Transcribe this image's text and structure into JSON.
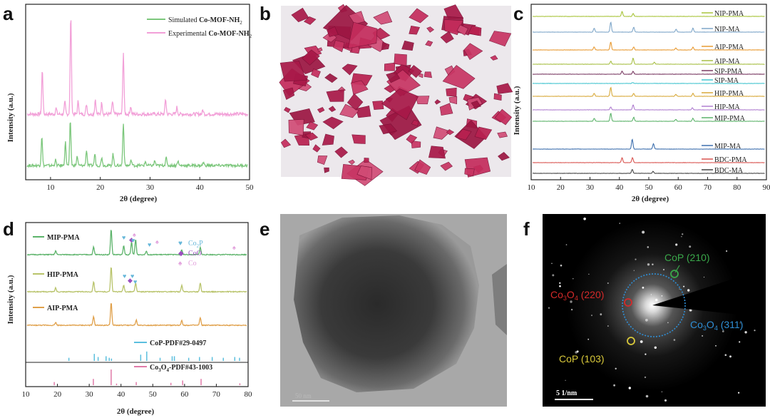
{
  "panels": {
    "a": {
      "label": "a"
    },
    "b": {
      "label": "b"
    },
    "c": {
      "label": "c"
    },
    "d": {
      "label": "d"
    },
    "e": {
      "label": "e"
    },
    "f": {
      "label": "f"
    }
  },
  "chart_data": [
    {
      "id": "a",
      "type": "line",
      "xlabel": "2θ (degree)",
      "ylabel": "Intensity (a.u.)",
      "xlim": [
        5,
        50
      ],
      "xticks": [
        "10",
        "20",
        "30",
        "40",
        "50"
      ],
      "legend": [
        {
          "prefix": "Simulated ",
          "bold": "Co-MOF-NH",
          "sub": "2",
          "color": "#7cc77c"
        },
        {
          "prefix": "Experimental ",
          "bold": "Co-MOF-NH",
          "sub": "2",
          "color": "#f2a0d8"
        }
      ],
      "series": [
        {
          "name": "Experimental",
          "color": "#f2a0d8",
          "offset": 0.5,
          "peaks": [
            [
              8.1,
              0.45
            ],
            [
              10.9,
              0.06
            ],
            [
              12.7,
              0.12
            ],
            [
              13.9,
              1.0
            ],
            [
              15.4,
              0.13
            ],
            [
              17.1,
              0.1
            ],
            [
              18.9,
              0.15
            ],
            [
              20.2,
              0.12
            ],
            [
              22.4,
              0.13
            ],
            [
              24.6,
              0.62
            ],
            [
              26.1,
              0.08
            ],
            [
              33.2,
              0.15
            ],
            [
              35.5,
              0.07
            ],
            [
              40.8,
              0.04
            ]
          ]
        },
        {
          "name": "Simulated",
          "color": "#7cc77c",
          "offset": 0.0,
          "peaks": [
            [
              8.0,
              0.38
            ],
            [
              10.8,
              0.07
            ],
            [
              12.8,
              0.3
            ],
            [
              13.8,
              0.58
            ],
            [
              15.2,
              0.12
            ],
            [
              17.1,
              0.2
            ],
            [
              18.8,
              0.15
            ],
            [
              20.2,
              0.11
            ],
            [
              22.5,
              0.15
            ],
            [
              24.6,
              0.55
            ],
            [
              26.2,
              0.07
            ],
            [
              29.1,
              0.05
            ],
            [
              31.0,
              0.06
            ],
            [
              33.3,
              0.11
            ],
            [
              35.7,
              0.06
            ],
            [
              40.9,
              0.04
            ]
          ]
        }
      ]
    },
    {
      "id": "c",
      "type": "line",
      "xlabel": "2θ (degree)",
      "ylabel": "Intensity (a.u.)",
      "xlim": [
        10,
        90
      ],
      "xticks": [
        "10",
        "20",
        "30",
        "40",
        "50",
        "60",
        "70",
        "80",
        "90"
      ],
      "series": [
        {
          "name": "NIP-PMA",
          "color": "#a8c43a",
          "peaks": [
            [
              40.8,
              0.5
            ],
            [
              44.6,
              0.3
            ]
          ]
        },
        {
          "name": "NIP-MA",
          "color": "#7ea6c9",
          "peaks": [
            [
              31.2,
              0.4
            ],
            [
              36.9,
              1.0
            ],
            [
              44.8,
              0.5
            ],
            [
              59.4,
              0.3
            ],
            [
              65.2,
              0.4
            ]
          ]
        },
        {
          "name": "AIP-PMA",
          "color": "#e89a32",
          "peaks": [
            [
              31.2,
              0.3
            ],
            [
              36.9,
              0.8
            ],
            [
              44.8,
              0.3
            ],
            [
              59.3,
              0.2
            ],
            [
              65.2,
              0.3
            ]
          ]
        },
        {
          "name": "AIP-MA",
          "color": "#a7bf45",
          "peaks": [
            [
              36.9,
              0.3
            ],
            [
              44.6,
              0.6
            ],
            [
              51.9,
              0.2
            ]
          ]
        },
        {
          "name": "SIP-PMA",
          "color": "#7a3a63",
          "peaks": [
            [
              40.8,
              0.3
            ],
            [
              44.6,
              0.3
            ]
          ]
        },
        {
          "name": "SIP-MA",
          "color": "#42c4cf",
          "peaks": [
            [
              44.5,
              0.1
            ]
          ]
        },
        {
          "name": "HIP-PMA",
          "color": "#d8a93a",
          "peaks": [
            [
              31.2,
              0.3
            ],
            [
              36.9,
              0.9
            ],
            [
              44.8,
              0.3
            ],
            [
              59.3,
              0.2
            ],
            [
              65.2,
              0.3
            ]
          ]
        },
        {
          "name": "HIP-MA",
          "color": "#b07fd0",
          "peaks": [
            [
              36.9,
              0.3
            ],
            [
              44.6,
              0.5
            ],
            [
              65.0,
              0.2
            ]
          ]
        },
        {
          "name": "MIP-PMA",
          "color": "#5cb36a",
          "peaks": [
            [
              31.2,
              0.3
            ],
            [
              36.9,
              0.8
            ],
            [
              44.8,
              0.4
            ],
            [
              59.3,
              0.2
            ],
            [
              65.2,
              0.3
            ]
          ]
        },
        {
          "name": "MIP-MA",
          "color": "#3d6fae",
          "peaks": [
            [
              44.3,
              1.0
            ],
            [
              51.6,
              0.55
            ]
          ]
        },
        {
          "name": "BDC-PMA",
          "color": "#d9534f",
          "peaks": [
            [
              40.8,
              0.5
            ],
            [
              44.4,
              0.5
            ]
          ]
        },
        {
          "name": "BDC-MA",
          "color": "#444444",
          "peaks": [
            [
              44.3,
              0.4
            ],
            [
              51.5,
              0.2
            ]
          ]
        }
      ]
    },
    {
      "id": "d",
      "type": "line",
      "xlabel": "2θ (degree)",
      "ylabel": "Intensity (a.u.)",
      "xlim": [
        10,
        80
      ],
      "xticks": [
        "10",
        "20",
        "30",
        "40",
        "50",
        "60",
        "70",
        "80"
      ],
      "markers_legend": [
        {
          "symbol": "heart",
          "label": "Co",
          "sub": "2",
          "suffix": "P",
          "color": "#66b7d9"
        },
        {
          "symbol": "diamond",
          "label": "CoO",
          "sub": "",
          "suffix": "",
          "color": "#9b4fbf"
        },
        {
          "symbol": "spade",
          "label": "Co",
          "sub": "",
          "suffix": "",
          "color": "#e2a0dc"
        }
      ],
      "series": [
        {
          "name": "MIP-PMA",
          "color": "#5cb36a",
          "peaks": [
            [
              19.1,
              0.15
            ],
            [
              31.2,
              0.3
            ],
            [
              36.8,
              1.0
            ],
            [
              40.8,
              0.35
            ],
            [
              43.3,
              0.5
            ],
            [
              44.6,
              0.6
            ],
            [
              48.0,
              0.15
            ],
            [
              59.3,
              0.2
            ],
            [
              65.2,
              0.3
            ]
          ]
        },
        {
          "name": "HIP-PMA",
          "color": "#b8c36a",
          "peaks": [
            [
              19.1,
              0.15
            ],
            [
              31.2,
              0.4
            ],
            [
              36.8,
              1.0
            ],
            [
              40.8,
              0.25
            ],
            [
              44.6,
              0.35
            ],
            [
              59.3,
              0.25
            ],
            [
              65.2,
              0.35
            ]
          ]
        },
        {
          "name": "AIP-PMA",
          "color": "#e0a04a",
          "peaks": [
            [
              19.1,
              0.12
            ],
            [
              31.2,
              0.35
            ],
            [
              36.8,
              0.9
            ],
            [
              44.8,
              0.2
            ],
            [
              59.3,
              0.2
            ],
            [
              65.2,
              0.3
            ]
          ]
        }
      ],
      "references": [
        {
          "name": "CoP-PDF#29-0497",
          "color": "#5bbfde",
          "lines": [
            [
              23.6,
              0.2
            ],
            [
              31.6,
              0.45
            ],
            [
              32.8,
              0.25
            ],
            [
              35.3,
              0.3
            ],
            [
              36.3,
              0.2
            ],
            [
              37.0,
              0.15
            ],
            [
              46.2,
              0.4
            ],
            [
              48.1,
              0.6
            ],
            [
              52.3,
              0.2
            ],
            [
              56.1,
              0.3
            ],
            [
              56.8,
              0.3
            ],
            [
              61.3,
              0.2
            ],
            [
              64.7,
              0.25
            ],
            [
              68.7,
              0.25
            ],
            [
              72.2,
              0.2
            ],
            [
              75.8,
              0.25
            ],
            [
              77.3,
              0.2
            ]
          ]
        },
        {
          "name": "Co3O4-PDF#43-1003",
          "color": "#e07aa8",
          "lines": [
            [
              19.0,
              0.2
            ],
            [
              31.3,
              0.4
            ],
            [
              36.9,
              1.0
            ],
            [
              38.6,
              0.1
            ],
            [
              44.8,
              0.2
            ],
            [
              55.7,
              0.15
            ],
            [
              59.4,
              0.3
            ],
            [
              65.2,
              0.4
            ],
            [
              77.4,
              0.12
            ]
          ]
        }
      ],
      "reference_labels": [
        {
          "main": "CoP-PDF#29-0497"
        },
        {
          "pre": "Co",
          "sub1": "3",
          "mid": "O",
          "sub2": "4",
          "post": "-PDF#43-1003"
        }
      ]
    }
  ],
  "images": {
    "e_scale": "50 nm",
    "f_scale": "5 1/nm",
    "f_annotations": [
      {
        "main": "CoP (210)",
        "color": "#3aa84a"
      },
      {
        "pre": "Co",
        "sub1": "3",
        "mid": "O",
        "sub2": "4",
        "post": " (220)",
        "color": "#d42a2a"
      },
      {
        "pre": "Co",
        "sub1": "3",
        "mid": "O",
        "sub2": "4",
        "post": " (311)",
        "color": "#2f8fd6"
      },
      {
        "main": "CoP (103)",
        "color": "#d8c83a"
      }
    ]
  }
}
